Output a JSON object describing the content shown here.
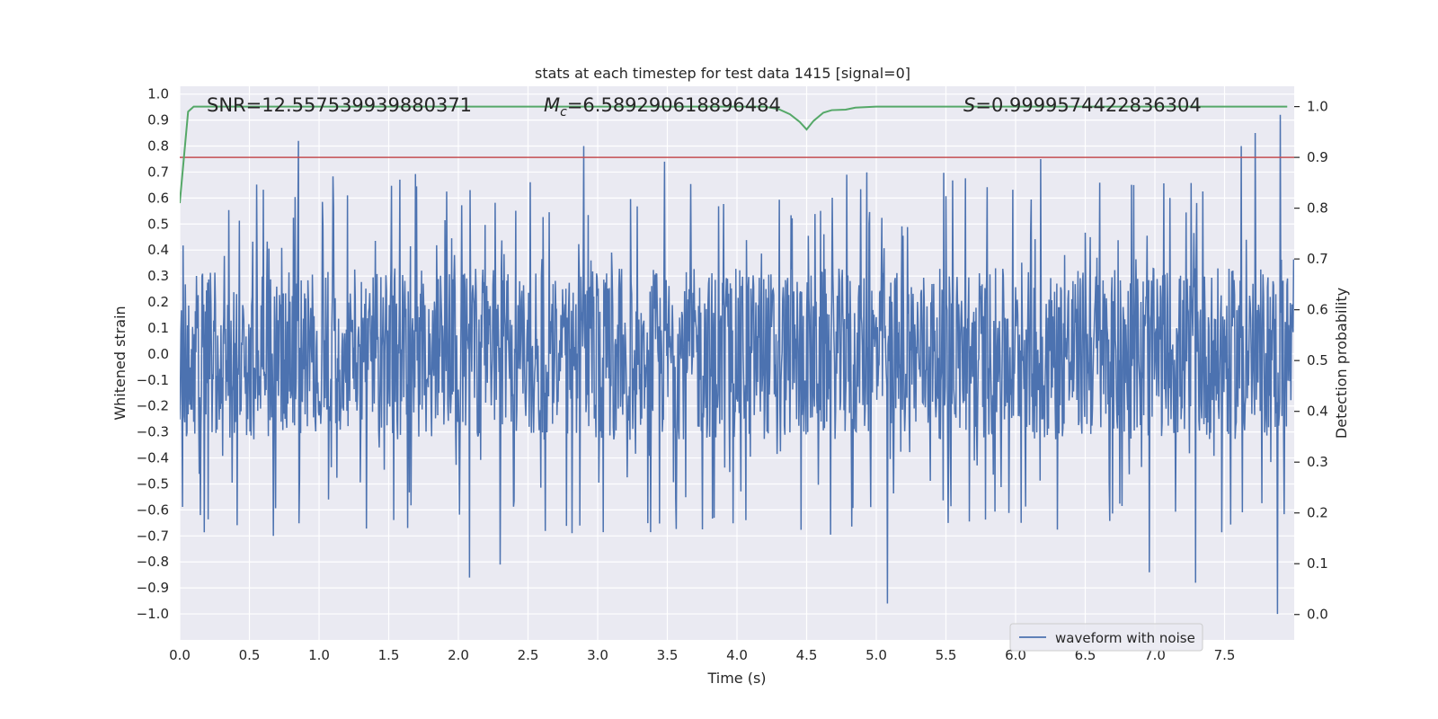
{
  "chart_data": {
    "type": "line",
    "title": "stats at each timestep for test data 1415 [signal=0]",
    "xlabel": "Time (s)",
    "ylabel": "Whitened strain",
    "y2label": "Detection probability",
    "xlim": [
      0.0,
      8.0
    ],
    "ylim": [
      -1.1,
      1.03
    ],
    "y2lim": [
      -0.05,
      1.04
    ],
    "xticks": [
      0.0,
      0.5,
      1.0,
      1.5,
      2.0,
      2.5,
      3.0,
      3.5,
      4.0,
      4.5,
      5.0,
      5.5,
      6.0,
      6.5,
      7.0,
      7.5
    ],
    "xtick_labels": [
      "0.0",
      "0.5",
      "1.0",
      "1.5",
      "2.0",
      "2.5",
      "3.0",
      "3.5",
      "4.0",
      "4.5",
      "5.0",
      "5.5",
      "6.0",
      "6.5",
      "7.0",
      "7.5"
    ],
    "yticks": [
      1.0,
      0.9,
      0.8,
      0.7,
      0.6,
      0.5,
      0.4,
      0.3,
      0.2,
      0.1,
      0.0,
      -0.1,
      -0.2,
      -0.3,
      -0.4,
      -0.5,
      -0.6,
      -0.7,
      -0.8,
      -0.9,
      -1.0
    ],
    "ytick_labels": [
      "1.0",
      "0.9",
      "0.8",
      "0.7",
      "0.6",
      "0.5",
      "0.4",
      "0.3",
      "0.2",
      "0.1",
      "0.0",
      "−0.1",
      "−0.2",
      "−0.3",
      "−0.4",
      "−0.5",
      "−0.6",
      "−0.7",
      "−0.8",
      "−0.9",
      "−1.0"
    ],
    "y2ticks": [
      1.0,
      0.9,
      0.8,
      0.7,
      0.6,
      0.5,
      0.4,
      0.3,
      0.2,
      0.1,
      0.0
    ],
    "y2tick_labels": [
      "1.0",
      "0.9",
      "0.8",
      "0.7",
      "0.6",
      "0.5",
      "0.4",
      "0.3",
      "0.2",
      "0.1",
      "0.0"
    ],
    "annotations": {
      "snr": "SNR=12.557539939880371",
      "mc_symbol": "M",
      "mc_sub": "c",
      "mc_value": "=6.589290618896484",
      "s_symbol": "S",
      "s_value": "=0.9999574422836304"
    },
    "legend": {
      "label": "waveform with noise",
      "placement": "lower-right"
    },
    "series": [
      {
        "name": "waveform with noise",
        "axis": "left",
        "color": "#4c72b0",
        "sample_rate_hz": 250,
        "duration_s": 8.0,
        "typical_envelope": 0.33,
        "max_peak": 0.92,
        "min_peak": -1.0,
        "peaks": [
          [
            0.85,
            0.82
          ],
          [
            2.9,
            0.8
          ],
          [
            3.48,
            0.74
          ],
          [
            6.18,
            0.75
          ],
          [
            7.62,
            0.8
          ],
          [
            7.72,
            0.85
          ],
          [
            7.9,
            0.92
          ],
          [
            2.08,
            -0.86
          ],
          [
            5.08,
            -0.96
          ],
          [
            7.88,
            -1.0
          ],
          [
            7.29,
            -0.88
          ],
          [
            2.3,
            -0.81
          ],
          [
            6.96,
            -0.84
          ]
        ]
      },
      {
        "name": "detection probability",
        "axis": "right",
        "color": "#55a868",
        "x": [
          0.0,
          0.03,
          0.06,
          0.1,
          0.15,
          0.3,
          4.0,
          4.2,
          4.3,
          4.38,
          4.45,
          4.5,
          4.55,
          4.62,
          4.68,
          4.78,
          4.85,
          5.0,
          7.95
        ],
        "values": [
          0.81,
          0.9,
          0.99,
          1.0,
          1.0,
          1.0,
          1.0,
          1.0,
          0.995,
          0.985,
          0.97,
          0.955,
          0.972,
          0.988,
          0.993,
          0.994,
          0.998,
          1.0,
          1.0
        ]
      },
      {
        "name": "threshold",
        "axis": "right",
        "color": "#c44e52",
        "x": [
          0.0,
          8.0
        ],
        "values": [
          0.9,
          0.9
        ]
      }
    ]
  }
}
